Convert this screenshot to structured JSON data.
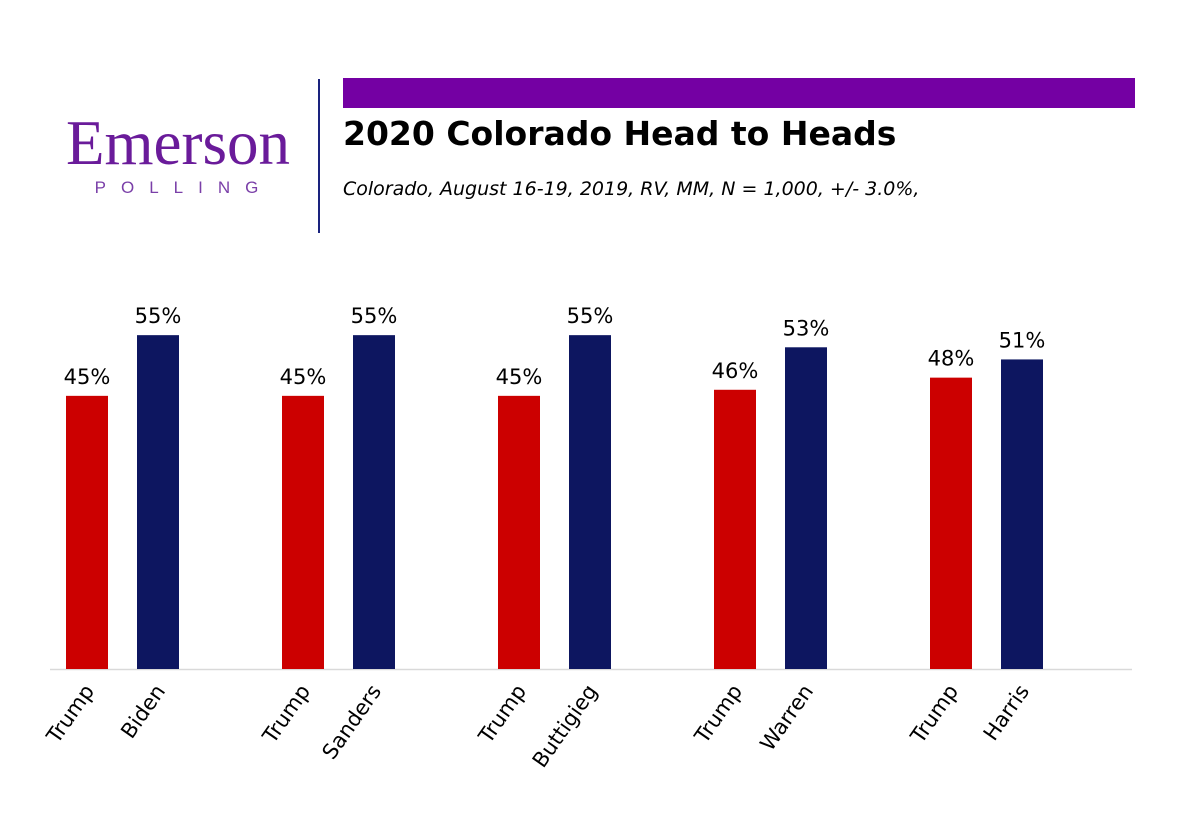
{
  "header": {
    "logo_word": "Emerson",
    "logo_sub": "POLLING",
    "title": "2020 Colorado Head to Heads",
    "subtitle": "Colorado, August 16-19, 2019, RV, MM, N = 1,000,  +/- 3.0%,"
  },
  "colors": {
    "brand_purple": "#7400a3",
    "republican": "#cc0000",
    "democrat": "#0d1660",
    "axis": "#d9d9d9"
  },
  "chart_data": {
    "type": "bar",
    "title": "2020 Colorado Head to Heads",
    "xlabel": "",
    "ylabel": "",
    "ylim": [
      0,
      60
    ],
    "grid": false,
    "groups": [
      {
        "name": "Trump vs Biden",
        "bars": [
          {
            "label": "Trump",
            "value": 45,
            "text": "45%"
          },
          {
            "label": "Biden",
            "value": 55,
            "text": "55%"
          }
        ]
      },
      {
        "name": "Trump vs Sanders",
        "bars": [
          {
            "label": "Trump",
            "value": 45,
            "text": "45%"
          },
          {
            "label": "Sanders",
            "value": 55,
            "text": "55%"
          }
        ]
      },
      {
        "name": "Trump vs Buttigieg",
        "bars": [
          {
            "label": "Trump",
            "value": 45,
            "text": "45%"
          },
          {
            "label": "Buttigieg",
            "value": 55,
            "text": "55%"
          }
        ]
      },
      {
        "name": "Trump vs Warren",
        "bars": [
          {
            "label": "Trump",
            "value": 46,
            "text": "46%"
          },
          {
            "label": "Warren",
            "value": 53,
            "text": "53%"
          }
        ]
      },
      {
        "name": "Trump vs Harris",
        "bars": [
          {
            "label": "Trump",
            "value": 48,
            "text": "48%"
          },
          {
            "label": "Harris",
            "value": 51,
            "text": "51%"
          }
        ]
      }
    ]
  }
}
